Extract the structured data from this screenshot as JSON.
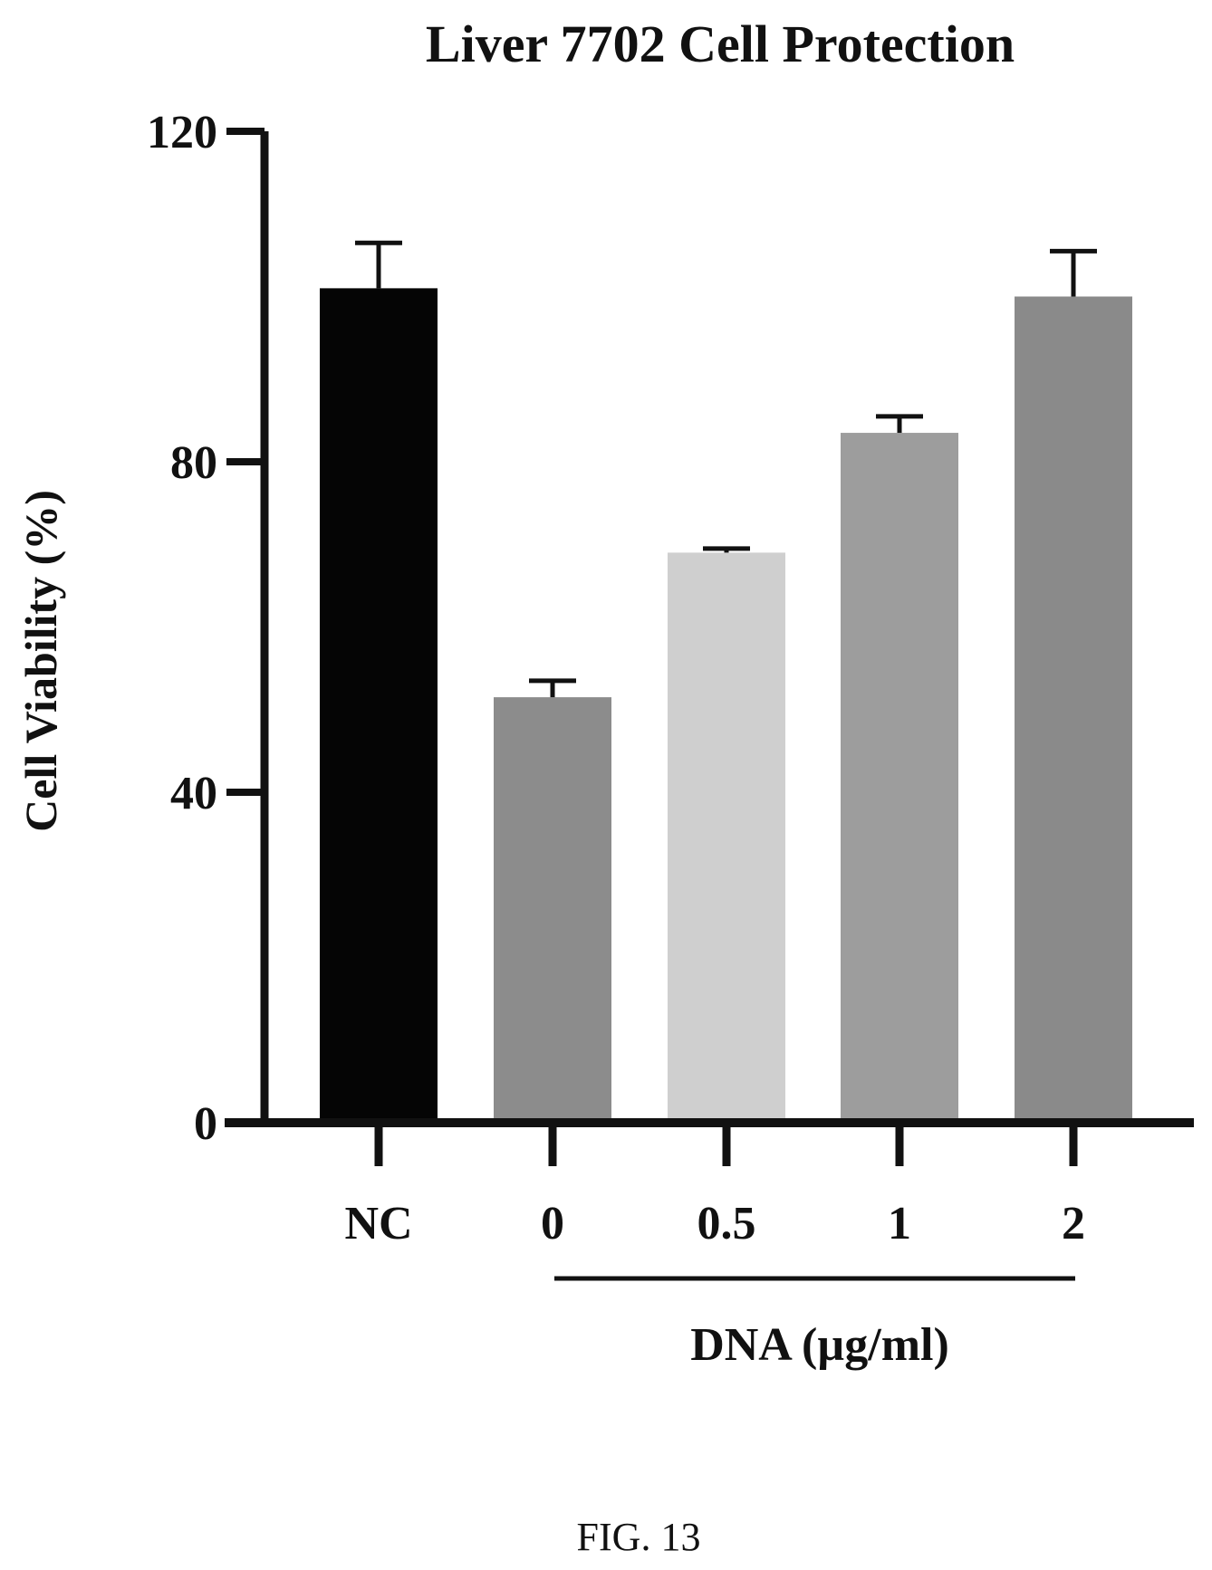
{
  "chart_data": {
    "type": "bar",
    "title": "Liver 7702 Cell  Protection",
    "ylabel": "Cell Viability (%)",
    "xlabel": "",
    "group_label": "DNA (µg/ml)",
    "caption": "FIG. 13",
    "ylim": [
      0,
      120
    ],
    "yticks": [
      "0",
      "40",
      "80",
      "120"
    ],
    "categories": [
      "NC",
      "0",
      "0.5",
      "1",
      "2"
    ],
    "series": [
      {
        "values": [
          101,
          51.5,
          69,
          83.5,
          100
        ],
        "errors": [
          5.5,
          2,
          0.5,
          2,
          5.5
        ]
      }
    ],
    "bar_colors": [
      "#050505",
      "#8c8c8c",
      "#cfcfcf",
      "#9d9d9d",
      "#8a8a8a"
    ],
    "grid": false,
    "legend": "none"
  }
}
